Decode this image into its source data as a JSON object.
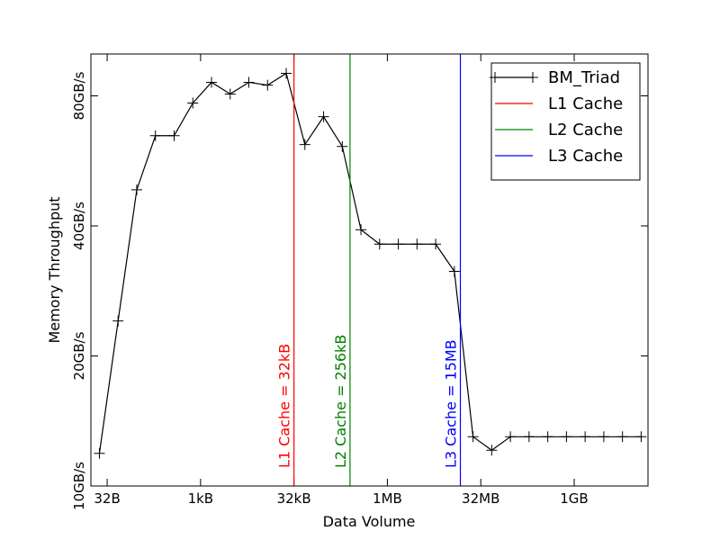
{
  "chart_data": {
    "type": "line",
    "xlabel": "Data Volume",
    "ylabel": "Memory Throughput",
    "xscale": "log",
    "yscale": "log",
    "x": [
      24,
      48,
      96,
      192,
      384,
      768,
      1536,
      3072,
      6144,
      12288,
      24576,
      49152,
      98304,
      196608,
      393216,
      786432,
      1572864,
      3145728,
      6291456,
      12582912,
      25165824,
      50331648,
      100663296,
      201326592,
      402653184,
      805306368,
      1610612736,
      3221225472,
      6442450944,
      12884901888
    ],
    "series": [
      {
        "name": "BM_Triad",
        "color": "#000000",
        "marker": "+",
        "values": [
          11.9,
          24.1,
          48.5,
          64.7,
          64.7,
          77.0,
          86.0,
          80.8,
          86.0,
          84.7,
          90.2,
          61.7,
          71.6,
          61.1,
          39.2,
          36.3,
          36.3,
          36.3,
          36.3,
          31.4,
          13.0,
          12.1,
          13.0,
          13.0,
          13.0,
          13.0,
          13.0,
          13.0,
          13.0,
          13.0
        ]
      }
    ],
    "vlines": [
      {
        "name": "L1 Cache",
        "label": "L1 Cache = 32kB",
        "x": 32768,
        "color": "#ff0000"
      },
      {
        "name": "L2 Cache",
        "label": "L2 Cache = 256kB",
        "x": 262144,
        "color": "#008000"
      },
      {
        "name": "L3 Cache",
        "label": "L3 Cache = 15MB",
        "x": 15728640,
        "color": "#0000ff"
      }
    ],
    "xlim": [
      17.5,
      16600000000
    ],
    "ylim": [
      10,
      100
    ],
    "xticks": [
      {
        "value": 32,
        "label": "32B"
      },
      {
        "value": 1024,
        "label": "1kB"
      },
      {
        "value": 32768,
        "label": "32kB"
      },
      {
        "value": 1048576,
        "label": "1MB"
      },
      {
        "value": 33554432,
        "label": "32MB"
      },
      {
        "value": 1073741824,
        "label": "1GB"
      }
    ],
    "yticks": [
      {
        "value": 10,
        "label": "10GB/s"
      },
      {
        "value": 20,
        "label": "20GB/s"
      },
      {
        "value": 40,
        "label": "40GB/s"
      },
      {
        "value": 80,
        "label": "80GB/s"
      }
    ],
    "grid": false,
    "legend": "upper right"
  }
}
